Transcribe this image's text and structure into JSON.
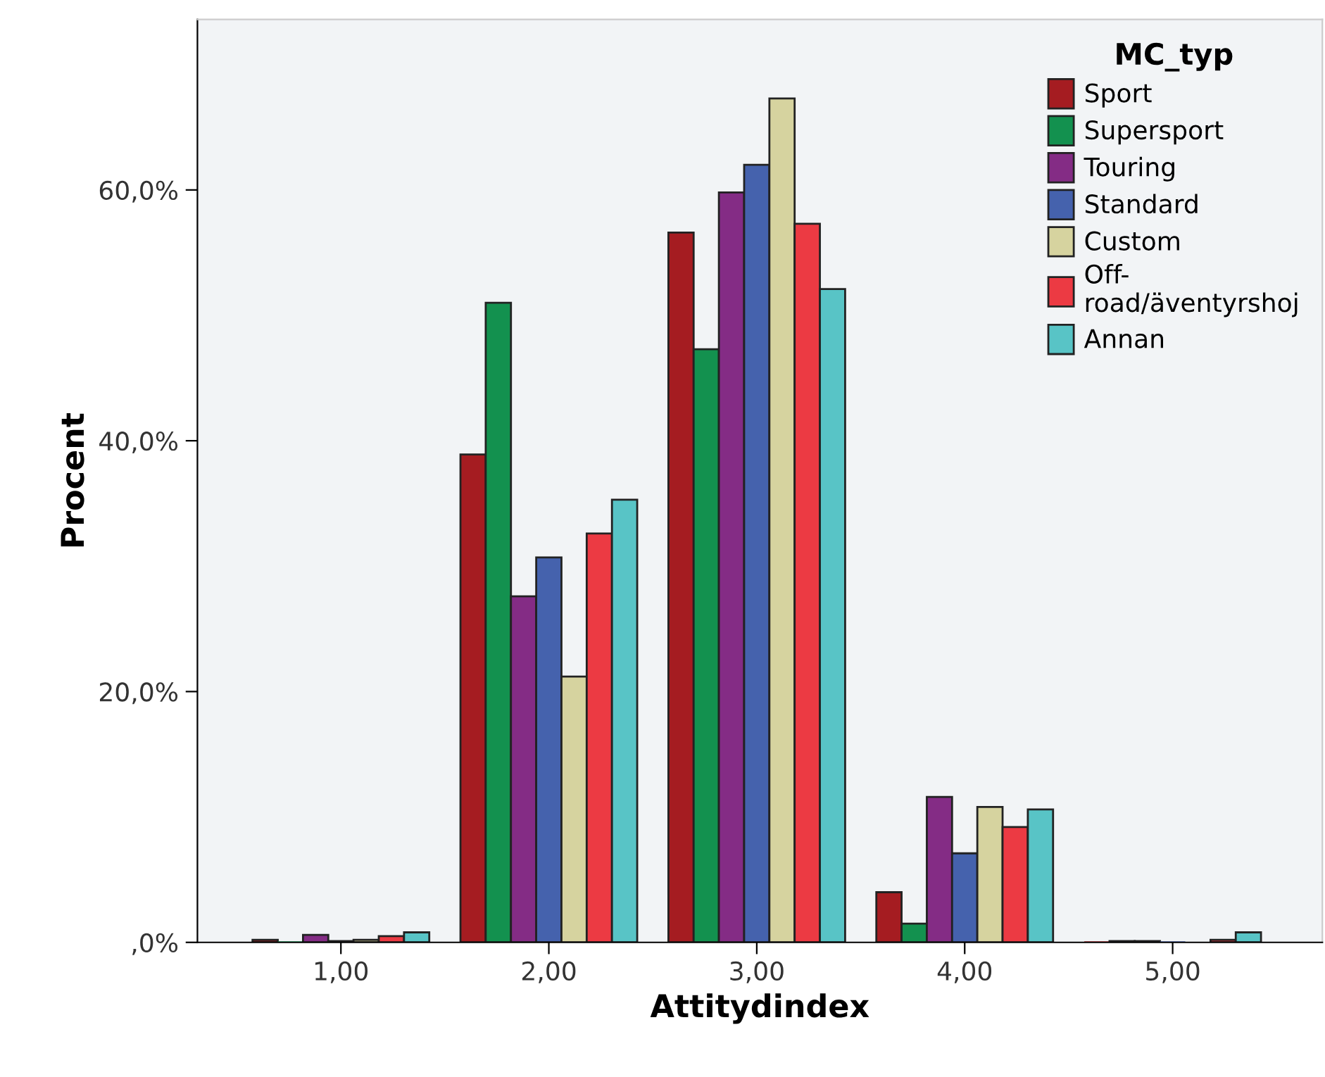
{
  "chart_data": {
    "type": "bar",
    "xlabel": "Attitydindex",
    "ylabel": "Procent",
    "legend_title": "MC_typ",
    "categories": [
      "1,00",
      "2,00",
      "3,00",
      "4,00",
      "5,00"
    ],
    "series": [
      {
        "name": "Sport",
        "color": "#a51c21",
        "values": [
          0.2,
          38.9,
          56.6,
          4.0,
          0.0
        ]
      },
      {
        "name": "Supersport",
        "color": "#13914f",
        "values": [
          0.0,
          51.0,
          47.3,
          1.5,
          0.1
        ]
      },
      {
        "name": "Touring",
        "color": "#842c85",
        "values": [
          0.6,
          27.6,
          59.8,
          11.6,
          0.1
        ]
      },
      {
        "name": "Standard",
        "color": "#4562ad",
        "values": [
          0.1,
          30.7,
          62.0,
          7.1,
          0.0
        ]
      },
      {
        "name": "Custom",
        "color": "#d6d39f",
        "values": [
          0.2,
          21.2,
          67.3,
          10.8,
          null
        ]
      },
      {
        "name": "Off-\nroad/äventyrshoj",
        "color": "#ec3a43",
        "values": [
          0.5,
          32.6,
          57.3,
          9.2,
          0.2
        ]
      },
      {
        "name": "Annan",
        "color": "#58c4c6",
        "values": [
          0.8,
          35.3,
          52.1,
          10.6,
          0.8
        ]
      }
    ],
    "ylim": [
      0,
      73.6
    ],
    "yticks": [
      {
        "value": 0,
        "label": ",0%"
      },
      {
        "value": 20,
        "label": "20,0%"
      },
      {
        "value": 40,
        "label": "40,0%"
      },
      {
        "value": 60,
        "label": "60,0%"
      }
    ],
    "grid": false,
    "legend": "top right"
  }
}
